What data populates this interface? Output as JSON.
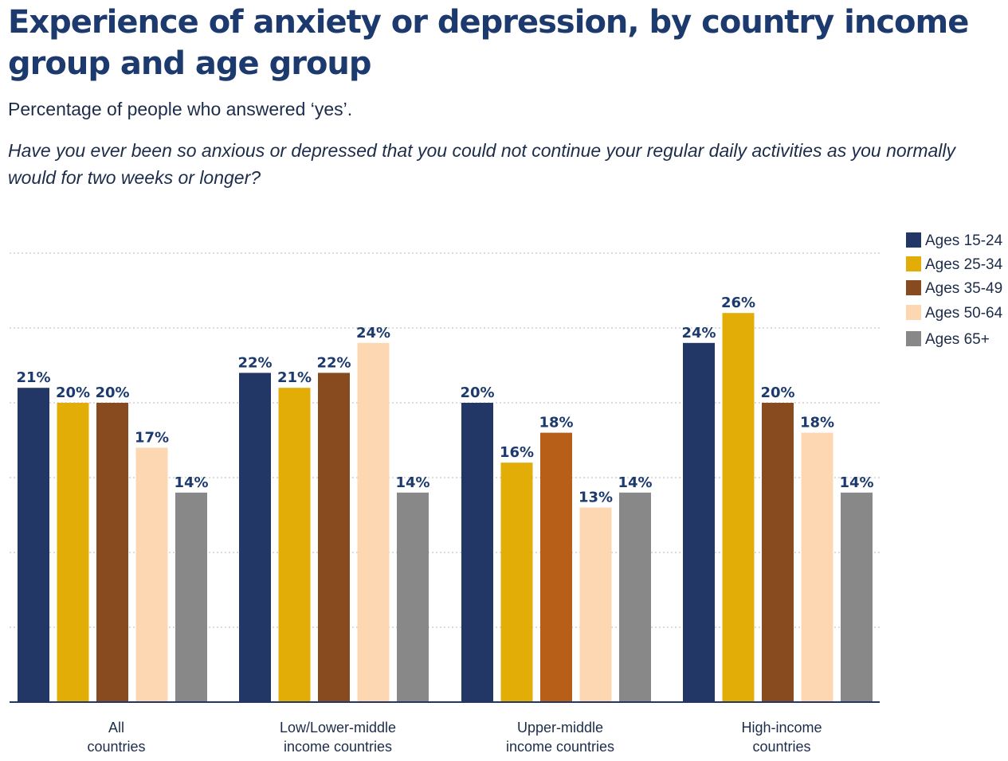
{
  "header": {
    "title": "Experience of anxiety or depression, by country income group and age group",
    "subtitle": "Percentage of people who answered ‘yes’.",
    "question": "Have you ever been so anxious or depressed that you could not continue your regular daily activities as you normally would for two weeks or longer?"
  },
  "chart_data": {
    "type": "bar",
    "title": "Experience of anxiety or depression, by country income group and age group",
    "xlabel": "",
    "ylabel": "",
    "ylim": [
      0,
      30
    ],
    "grid": true,
    "legend_position": "top-right",
    "categories": [
      [
        "All",
        "countries"
      ],
      [
        "Low/Lower-middle",
        "income countries"
      ],
      [
        "Upper-middle",
        "income countries"
      ],
      [
        "High-income",
        "countries"
      ]
    ],
    "series": [
      {
        "name": "Ages 15-24",
        "color": "#233767",
        "values": [
          21,
          22,
          20,
          24
        ],
        "labels": [
          "21%",
          "22%",
          "20%",
          "24%"
        ]
      },
      {
        "name": "Ages 25-34",
        "color": "#e3ad07",
        "values": [
          20,
          21,
          16,
          26
        ],
        "labels": [
          "20%",
          "21%",
          "16%",
          "26%"
        ]
      },
      {
        "name": "Ages 35-49",
        "color": "#884a1f",
        "values": [
          20,
          22,
          18,
          20
        ],
        "labels": [
          "20%",
          "22%",
          "18%",
          "20%"
        ],
        "point_colors": [
          "#884a1f",
          "#884a1f",
          "#b75e19",
          "#884a1f"
        ]
      },
      {
        "name": "Ages 50-64",
        "color": "#fcd7b1",
        "values": [
          17,
          24,
          13,
          18
        ],
        "labels": [
          "17%",
          "24%",
          "13%",
          "18%"
        ]
      },
      {
        "name": "Ages 65+",
        "color": "#888888",
        "values": [
          14,
          14,
          14,
          14
        ],
        "labels": [
          "14%",
          "14%",
          "14%",
          "14%"
        ]
      }
    ]
  }
}
